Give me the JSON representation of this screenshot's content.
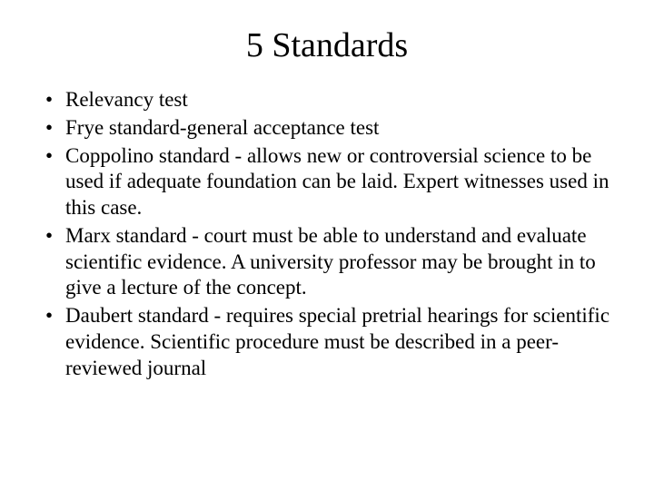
{
  "slide": {
    "title": "5 Standards",
    "bullets": [
      "Relevancy test",
      "Frye standard-general acceptance test",
      "Coppolino standard - allows new or controversial science to be used if adequate foundation can be laid.  Expert witnesses used in this case.",
      "Marx standard - court must be able to understand and evaluate scientific evidence.  A university professor may be brought in to give a lecture of the concept.",
      "Daubert standard - requires special pretrial hearings for scientific evidence.  Scientific procedure must be described in a peer-reviewed journal"
    ],
    "colors": {
      "background": "#ffffff",
      "text": "#000000"
    },
    "typography": {
      "title_fontsize": 38,
      "body_fontsize": 23,
      "font_family": "Times New Roman"
    }
  }
}
